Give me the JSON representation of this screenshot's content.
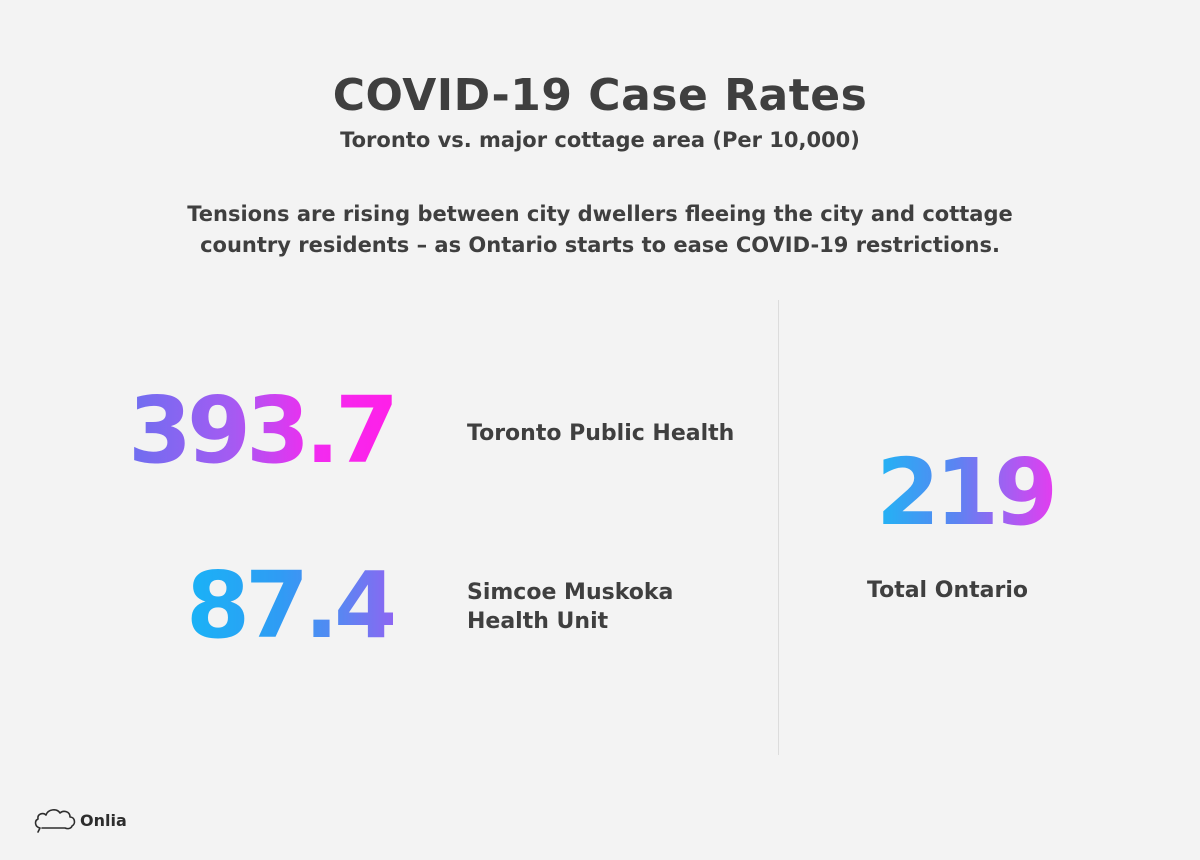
{
  "header": {
    "title": "COVID-19 Case Rates",
    "subtitle": "Toronto vs. major cottage area (Per 10,000)"
  },
  "intro": {
    "line1": "Tensions are rising between city dwellers fleeing the city and cottage",
    "line2": "country residents – as Ontario starts to ease COVID-19 restrictions."
  },
  "stats": {
    "toronto": {
      "value": "393.7",
      "label": "Toronto Public Health"
    },
    "simcoe": {
      "value": "87.4",
      "label_line1": "Simcoe Muskoka",
      "label_line2": "Health Unit"
    },
    "ontario": {
      "value": "219",
      "label": "Total Ontario"
    }
  },
  "brand": {
    "logo_text": "Onlia",
    "logo_icon": "cloud-icon"
  },
  "colors": {
    "background": "#f3f3f3",
    "text": "#3f3f3f",
    "gradient_pink": "#ff1fe8",
    "gradient_purple": "#a65af2",
    "gradient_blue": "#19b3f6"
  }
}
